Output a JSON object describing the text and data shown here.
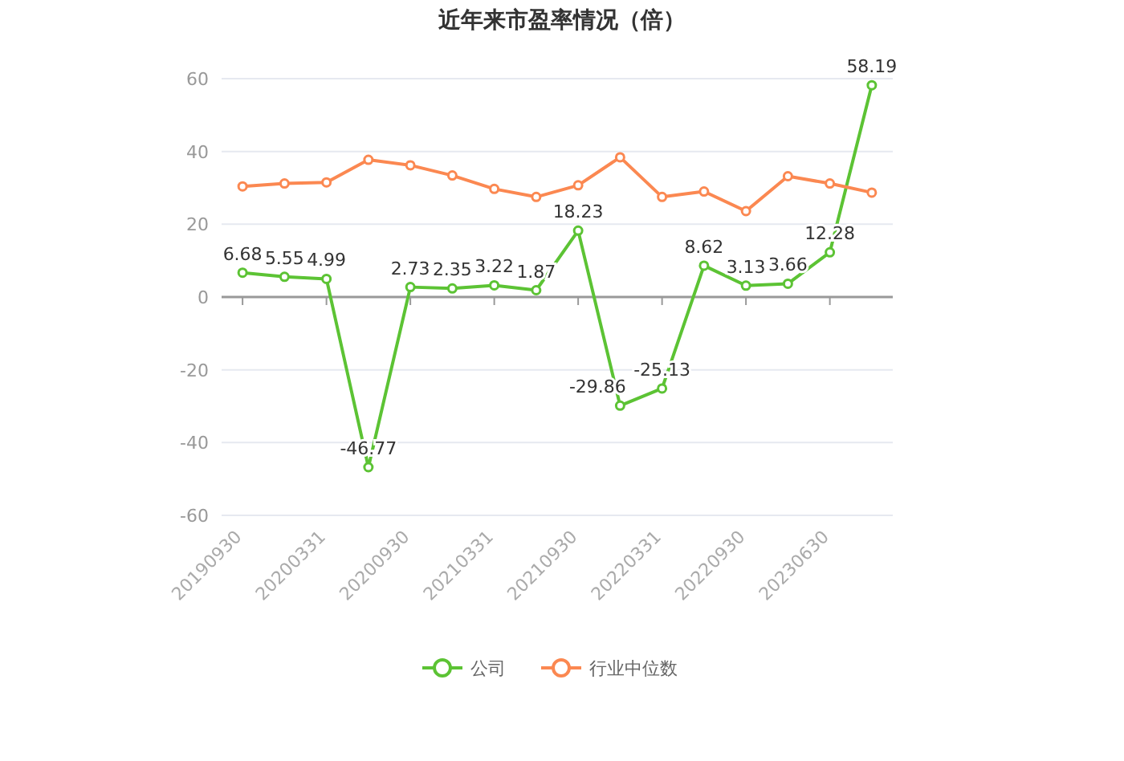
{
  "chart_data": {
    "type": "line",
    "title": "近年来市盈率情况（倍）",
    "categories": [
      "20190930",
      null,
      "20200331",
      null,
      "20200930",
      null,
      "20210331",
      null,
      "20210930",
      null,
      "20220331",
      null,
      "20220930",
      null,
      "20230630",
      null
    ],
    "series": [
      {
        "name": "公司",
        "color": "#5cc334",
        "values": [
          6.68,
          5.55,
          4.99,
          -46.77,
          2.73,
          2.35,
          3.22,
          1.87,
          18.23,
          -29.86,
          -25.13,
          8.62,
          3.13,
          3.66,
          12.28,
          58.19
        ],
        "value_labels": [
          "6.68",
          "5.55",
          "4.99",
          "-46.77",
          "2.73",
          "2.35",
          "3.22",
          "1.87",
          "18.23",
          "-29.86",
          "-25.13",
          "8.62",
          "3.13",
          "3.66",
          "12.28",
          "58.19"
        ]
      },
      {
        "name": "行业中位数",
        "color": "#fb8851",
        "values": [
          30.4,
          31.2,
          31.5,
          37.7,
          36.2,
          33.4,
          29.7,
          27.5,
          30.7,
          38.4,
          27.5,
          29.0,
          23.6,
          33.2,
          31.2,
          28.7
        ]
      }
    ],
    "ylim": [
      -60,
      60
    ],
    "yticks": [
      -60,
      -40,
      -20,
      0,
      20,
      40,
      60
    ],
    "grid": "y",
    "legend": "bottom",
    "marker": "circle",
    "line_style": "solid"
  }
}
